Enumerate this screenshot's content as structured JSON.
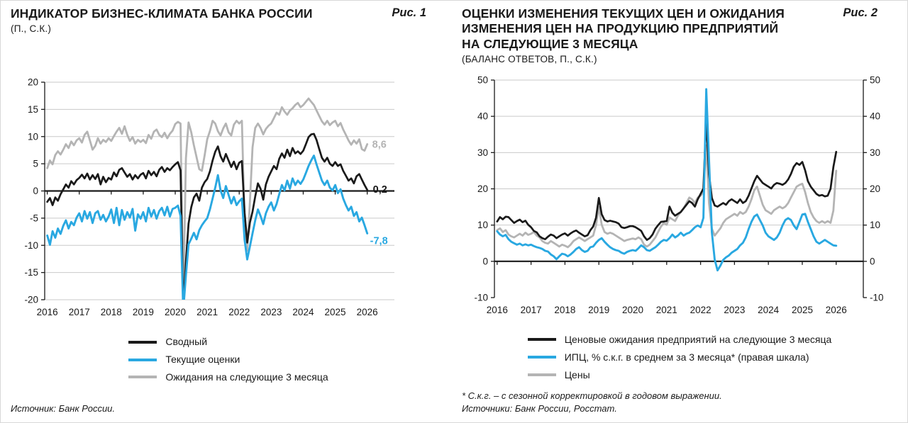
{
  "colors": {
    "black": "#1a1a1a",
    "blue": "#29a8e1",
    "gray": "#b4b4b4",
    "grid": "#c9c9c9"
  },
  "chart_data": [
    {
      "type": "line",
      "title": "ИНДИКАТОР БИЗНЕС-КЛИМАТА БАНКА РОССИИ",
      "fig_label": "Рис. 1",
      "subtitle": "(П., С.К.)",
      "source": "Источник: Банк России.",
      "legend_position": "bottom",
      "grid_on": true,
      "xlim": [
        2015.92,
        2026.85
      ],
      "ylim": [
        -20,
        20
      ],
      "yticks": [
        20,
        15,
        10,
        5,
        0,
        -5,
        -10,
        -15,
        -20
      ],
      "grid_ticks": [
        20,
        15,
        10,
        5,
        -5,
        -10,
        -15,
        -20
      ],
      "xticks": [
        2016,
        2017,
        2018,
        2019,
        2020,
        2021,
        2022,
        2023,
        2024,
        2025,
        2026
      ],
      "right_axis": false,
      "legend": [
        {
          "label": "Сводный",
          "color": "#1a1a1a"
        },
        {
          "label": "Текущие оценки",
          "color": "#29a8e1"
        },
        {
          "label": "Ожидания на следующие 3 месяца",
          "color": "#b4b4b4"
        }
      ],
      "series": [
        {
          "name": "Ожидания на следующие 3 месяца",
          "color": "#b4b4b4",
          "width": 2.8,
          "x_start": 2016,
          "x_step_months": 1,
          "end_label": "8,6",
          "label_dx": 7,
          "label_dy": 5,
          "values": [
            4.2,
            5.6,
            4.9,
            6.6,
            7.3,
            6.7,
            7.6,
            8.6,
            7.9,
            9.1,
            8.4,
            9.3,
            9.7,
            8.9,
            10.3,
            10.9,
            9.3,
            7.6,
            8.3,
            9.7,
            8.7,
            9.4,
            9.0,
            9.7,
            9.2,
            10.1,
            10.9,
            11.6,
            10.5,
            11.9,
            10.3,
            9.2,
            9.9,
            8.7,
            9.4,
            9.0,
            9.4,
            8.8,
            10.3,
            9.6,
            10.9,
            11.3,
            10.3,
            9.9,
            10.7,
            9.7,
            10.5,
            11.1,
            12.3,
            12.7,
            12.4,
            -20.5,
            6.0,
            12.6,
            10.8,
            8.4,
            6.2,
            4.0,
            3.7,
            6.5,
            9.5,
            11.0,
            12.9,
            12.4,
            11.0,
            10.2,
            11.5,
            12.4,
            10.8,
            10.2,
            12.2,
            12.9,
            12.4,
            12.9,
            -6.0,
            -11.0,
            -2.0,
            8.0,
            11.6,
            12.4,
            11.6,
            10.4,
            11.4,
            12.0,
            12.4,
            13.4,
            14.4,
            14.0,
            15.4,
            14.6,
            14.0,
            14.8,
            15.2,
            15.8,
            16.2,
            15.4,
            15.8,
            16.4,
            17.0,
            16.4,
            15.8,
            14.8,
            13.8,
            12.8,
            12.2,
            12.9,
            12.1,
            12.6,
            12.9,
            11.9,
            12.5,
            11.3,
            10.3,
            9.3,
            8.5,
            9.3,
            8.7,
            9.5,
            7.7,
            7.4,
            8.6
          ]
        },
        {
          "name": "Сводный",
          "color": "#1a1a1a",
          "width": 2.7,
          "x_start": 2016,
          "x_step_months": 1,
          "end_label": "0,2",
          "label_dx": 8,
          "label_dy": 4,
          "values": [
            -2.0,
            -1.3,
            -2.6,
            -1.2,
            -1.8,
            -0.6,
            0.3,
            1.2,
            0.6,
            1.8,
            1.2,
            2.0,
            2.4,
            3.0,
            2.3,
            3.2,
            2.1,
            2.9,
            2.2,
            3.1,
            1.2,
            2.6,
            1.6,
            2.4,
            2.1,
            3.4,
            2.7,
            3.9,
            4.2,
            3.4,
            2.6,
            3.1,
            2.1,
            2.9,
            2.3,
            3.0,
            3.3,
            2.3,
            3.7,
            2.9,
            3.5,
            2.7,
            3.9,
            4.4,
            3.5,
            4.2,
            3.8,
            4.4,
            4.9,
            5.3,
            3.8,
            -21.5,
            -13.0,
            -6.0,
            -3.0,
            -1.2,
            -0.5,
            -1.8,
            0.6,
            1.6,
            2.2,
            3.6,
            5.6,
            7.2,
            8.2,
            6.4,
            5.4,
            6.8,
            5.6,
            4.4,
            5.4,
            4.0,
            5.2,
            5.5,
            -4.0,
            -9.5,
            -5.8,
            -3.8,
            -1.0,
            1.4,
            0.4,
            -1.6,
            1.2,
            2.6,
            3.6,
            4.6,
            4.0,
            5.9,
            6.9,
            6.1,
            7.6,
            6.4,
            7.9,
            6.9,
            7.3,
            6.8,
            7.4,
            8.6,
            9.9,
            10.4,
            10.5,
            9.4,
            7.7,
            6.1,
            5.4,
            6.1,
            5.0,
            4.6,
            5.3,
            4.6,
            4.9,
            3.7,
            2.8,
            1.9,
            2.3,
            1.4,
            2.7,
            3.1,
            2.1,
            1.1,
            0.2
          ]
        },
        {
          "name": "Текущие оценки",
          "color": "#29a8e1",
          "width": 2.9,
          "x_start": 2016,
          "x_step_months": 1,
          "end_label": "-7,8",
          "label_dx": 4,
          "label_dy": 15,
          "values": [
            -8.2,
            -9.9,
            -7.4,
            -8.6,
            -6.9,
            -7.9,
            -6.4,
            -5.4,
            -6.9,
            -5.7,
            -6.3,
            -4.9,
            -4.1,
            -5.6,
            -3.7,
            -5.1,
            -3.9,
            -5.9,
            -4.1,
            -3.7,
            -5.3,
            -4.4,
            -5.6,
            -4.7,
            -3.4,
            -5.9,
            -3.1,
            -6.3,
            -3.5,
            -5.3,
            -3.9,
            -4.9,
            -3.3,
            -7.3,
            -4.3,
            -5.1,
            -3.9,
            -5.6,
            -3.1,
            -4.7,
            -3.5,
            -5.1,
            -3.7,
            -3.1,
            -4.5,
            -2.9,
            -4.7,
            -3.3,
            -3.1,
            -2.7,
            -4.6,
            -22.0,
            -15.5,
            -9.8,
            -8.8,
            -7.7,
            -8.9,
            -7.2,
            -6.3,
            -5.6,
            -5.0,
            -3.4,
            -1.4,
            0.6,
            2.9,
            0.1,
            -1.3,
            0.9,
            -0.7,
            -2.3,
            -1.1,
            -2.6,
            -1.9,
            -1.4,
            -9.0,
            -12.6,
            -10.2,
            -7.8,
            -5.4,
            -3.4,
            -4.6,
            -6.1,
            -4.1,
            -2.9,
            -2.1,
            -3.6,
            -2.4,
            -0.6,
            1.1,
            0.1,
            1.9,
            0.4,
            2.3,
            1.1,
            1.9,
            1.3,
            2.1,
            3.3,
            4.6,
            5.6,
            6.5,
            4.9,
            3.4,
            1.9,
            1.1,
            1.9,
            0.6,
            0.1,
            1.1,
            -0.4,
            0.3,
            -1.4,
            -2.6,
            -3.6,
            -2.9,
            -4.6,
            -3.9,
            -5.6,
            -4.9,
            -6.3,
            -7.8
          ]
        }
      ]
    },
    {
      "type": "line",
      "title": "ОЦЕНКИ ИЗМЕНЕНИЯ ТЕКУЩИХ ЦЕН И ОЖИДАНИЯ\nИЗМЕНЕНИЯ ЦЕН НА ПРОДУКЦИЮ ПРЕДПРИЯТИЙ\nНА СЛЕДУЮЩИЕ 3 МЕСЯЦА",
      "fig_label": "Рис. 2",
      "subtitle": "(БАЛАНС ОТВЕТОВ, П., С.К.)",
      "footnote": "* С.к.г. – с сезонной корректировкой в годовом выражении.",
      "source": "Источники: Банк России, Росстат.",
      "legend_position": "bottom",
      "grid_on": true,
      "xlim": [
        2015.92,
        2026.8
      ],
      "ylim": [
        -10,
        50
      ],
      "yticks": [
        50,
        40,
        30,
        20,
        10,
        0,
        -10
      ],
      "grid_ticks": [
        50,
        40,
        30,
        20,
        10
      ],
      "xticks": [
        2016,
        2017,
        2018,
        2019,
        2020,
        2021,
        2022,
        2023,
        2024,
        2025,
        2026
      ],
      "right_axis": true,
      "legend": [
        {
          "label": "Ценовые ожидания предприятий на следующие 3 месяца",
          "color": "#1a1a1a"
        },
        {
          "label": "ИПЦ, % с.к.г. в среднем за 3 месяца* (правая шкала)",
          "color": "#29a8e1"
        },
        {
          "label": "Цены",
          "color": "#b4b4b4"
        }
      ],
      "series": [
        {
          "name": "Цены",
          "color": "#b4b4b4",
          "width": 2.8,
          "x_start": 2016,
          "x_step_months": 1,
          "values": [
            8.6,
            9.1,
            8.1,
            8.6,
            7.4,
            6.9,
            6.6,
            7.1,
            7.6,
            7.1,
            7.9,
            7.3,
            7.6,
            8.1,
            7.1,
            6.6,
            5.6,
            5.1,
            4.9,
            5.6,
            5.1,
            4.6,
            4.1,
            4.6,
            4.3,
            3.9,
            4.6,
            5.6,
            6.1,
            6.6,
            6.1,
            5.6,
            6.1,
            6.6,
            7.1,
            10.0,
            15.0,
            10.1,
            8.1,
            7.6,
            7.9,
            7.6,
            7.1,
            6.6,
            6.1,
            5.6,
            5.9,
            6.1,
            6.3,
            6.1,
            6.6,
            6.1,
            4.6,
            4.1,
            4.6,
            5.6,
            6.6,
            8.1,
            9.6,
            10.6,
            10.1,
            12.1,
            11.6,
            11.1,
            12.6,
            13.6,
            14.6,
            16.1,
            17.6,
            17.1,
            16.1,
            17.6,
            18.1,
            19.1,
            32.0,
            16.0,
            9.0,
            7.1,
            8.1,
            9.1,
            10.6,
            11.6,
            12.1,
            12.6,
            13.1,
            12.6,
            13.6,
            13.1,
            13.6,
            15.1,
            17.1,
            19.6,
            20.6,
            18.1,
            15.6,
            14.1,
            13.6,
            13.1,
            14.1,
            14.6,
            15.1,
            14.6,
            15.1,
            16.1,
            17.6,
            19.1,
            20.6,
            21.1,
            21.4,
            19.1,
            16.1,
            13.6,
            12.1,
            11.1,
            10.6,
            11.1,
            10.6,
            11.1,
            10.6,
            14.0,
            25.0
          ]
        },
        {
          "name": "Ценовые ожидания предприятий на следующие 3 месяца",
          "color": "#1a1a1a",
          "width": 2.7,
          "x_start": 2016,
          "x_step_months": 1,
          "values": [
            11.0,
            12.2,
            11.6,
            12.3,
            12.2,
            11.4,
            10.6,
            11.1,
            11.5,
            10.8,
            11.2,
            10.1,
            9.4,
            8.4,
            8.0,
            6.9,
            6.4,
            6.1,
            6.8,
            7.4,
            7.1,
            6.4,
            6.9,
            7.4,
            7.7,
            7.1,
            7.7,
            8.2,
            8.5,
            7.9,
            7.4,
            6.9,
            7.2,
            8.6,
            9.6,
            12.0,
            17.5,
            13.0,
            11.4,
            11.0,
            11.2,
            11.0,
            10.8,
            10.4,
            9.4,
            9.2,
            9.4,
            9.7,
            9.7,
            9.4,
            8.9,
            8.4,
            6.9,
            5.9,
            6.4,
            7.4,
            9.0,
            10.0,
            10.9,
            11.0,
            11.1,
            15.1,
            13.4,
            12.6,
            13.1,
            13.6,
            14.6,
            15.6,
            16.6,
            16.1,
            15.1,
            17.1,
            18.6,
            20.1,
            39.5,
            24.0,
            17.5,
            15.4,
            15.1,
            15.6,
            16.1,
            15.6,
            16.6,
            17.1,
            16.6,
            16.1,
            17.1,
            16.1,
            16.6,
            18.1,
            20.1,
            22.1,
            23.6,
            22.6,
            21.6,
            21.1,
            20.6,
            20.1,
            21.1,
            21.6,
            21.4,
            21.1,
            21.6,
            22.6,
            24.1,
            26.1,
            27.1,
            26.6,
            27.4,
            25.1,
            22.1,
            20.6,
            19.6,
            18.6,
            18.1,
            18.3,
            17.9,
            18.1,
            20.0,
            26.0,
            30.2
          ]
        },
        {
          "name": "ИПЦ, % с.к.г. в среднем за 3 месяца (правая шкала)",
          "color": "#29a8e1",
          "width": 2.9,
          "x_start": 2016,
          "x_step_months": 1,
          "values": [
            8.3,
            7.4,
            6.9,
            7.3,
            6.1,
            5.4,
            5.0,
            4.6,
            4.9,
            4.4,
            4.7,
            4.4,
            4.6,
            4.2,
            3.9,
            3.7,
            3.4,
            2.9,
            2.7,
            1.9,
            1.4,
            0.6,
            1.4,
            2.1,
            1.9,
            1.4,
            1.9,
            2.6,
            3.4,
            3.9,
            3.1,
            2.6,
            2.9,
            3.9,
            4.1,
            5.1,
            5.9,
            6.4,
            5.4,
            4.6,
            3.9,
            3.4,
            3.1,
            2.9,
            2.4,
            2.1,
            2.6,
            2.9,
            3.1,
            2.9,
            3.6,
            4.4,
            3.9,
            3.1,
            2.9,
            3.4,
            3.9,
            4.6,
            5.4,
            5.9,
            5.7,
            6.4,
            7.4,
            6.6,
            7.1,
            7.9,
            7.1,
            7.6,
            7.9,
            8.6,
            9.4,
            9.9,
            9.4,
            12.0,
            47.5,
            28.0,
            8.0,
            0.5,
            -2.5,
            -1.2,
            0.4,
            1.1,
            1.6,
            2.4,
            2.9,
            3.4,
            4.4,
            5.1,
            6.6,
            8.9,
            10.9,
            12.4,
            12.9,
            11.4,
            9.9,
            7.9,
            6.9,
            6.4,
            5.9,
            6.6,
            7.9,
            9.9,
            11.4,
            11.9,
            11.4,
            9.9,
            8.9,
            10.9,
            12.9,
            13.1,
            10.9,
            8.9,
            6.9,
            5.4,
            4.9,
            5.4,
            5.9,
            5.4,
            4.9,
            4.4,
            4.3
          ]
        }
      ]
    }
  ]
}
